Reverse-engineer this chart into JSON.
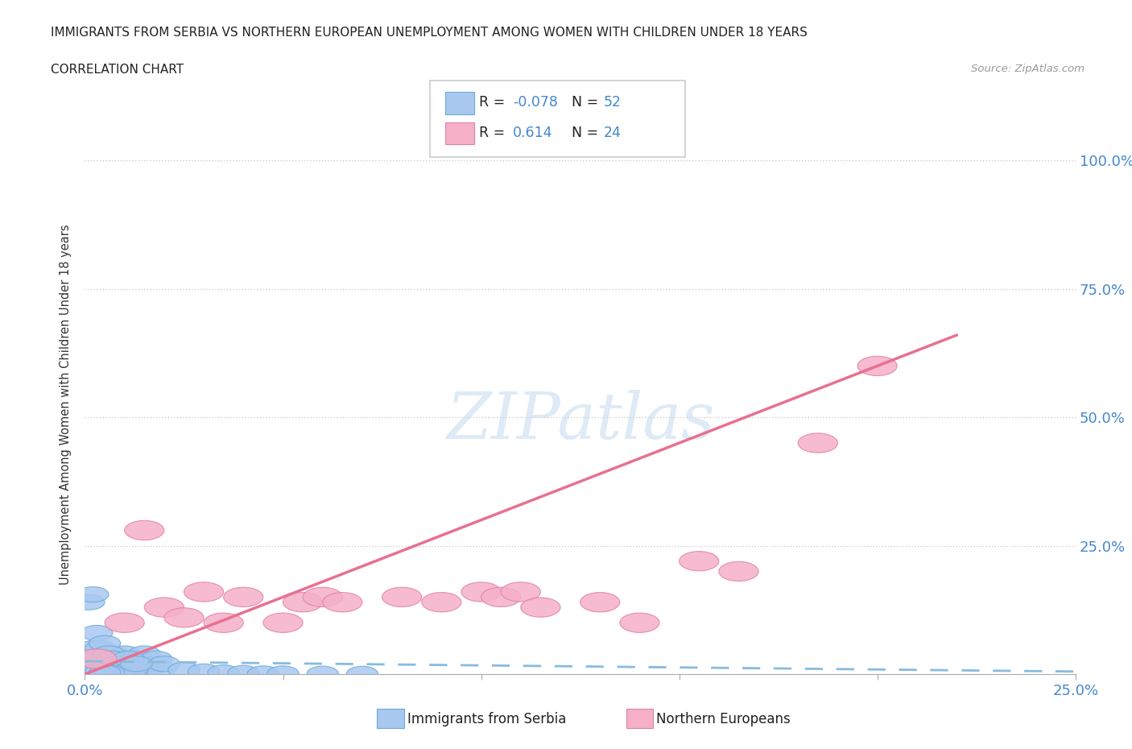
{
  "title": "IMMIGRANTS FROM SERBIA VS NORTHERN EUROPEAN UNEMPLOYMENT AMONG WOMEN WITH CHILDREN UNDER 18 YEARS",
  "subtitle": "CORRELATION CHART",
  "source": "Source: ZipAtlas.com",
  "ylabel": "Unemployment Among Women with Children Under 18 years",
  "xlim": [
    0.0,
    0.25
  ],
  "ylim": [
    0.0,
    1.05
  ],
  "r_serbia": -0.078,
  "n_serbia": 52,
  "r_northern": 0.614,
  "n_northern": 24,
  "color_serbia_fill": "#a8c8f0",
  "color_serbia_edge": "#6aaad8",
  "color_northern_fill": "#f5b0c8",
  "color_northern_edge": "#e080a8",
  "color_serbia_line": "#88bbdd",
  "color_northern_line": "#e87090",
  "color_right_labels": "#4488cc",
  "color_bottom_labels": "#4488cc",
  "watermark": "ZIPatlas",
  "serbia_x": [
    0.0005,
    0.001,
    0.0015,
    0.002,
    0.0025,
    0.003,
    0.004,
    0.005,
    0.006,
    0.007,
    0.008,
    0.009,
    0.01,
    0.011,
    0.012,
    0.013,
    0.014,
    0.015,
    0.016,
    0.017,
    0.018,
    0.019,
    0.02,
    0.001,
    0.002,
    0.003,
    0.004,
    0.005,
    0.006,
    0.007,
    0.008,
    0.009,
    0.01,
    0.011,
    0.012,
    0.013,
    0.003,
    0.004,
    0.005,
    0.006,
    0.002,
    0.003,
    0.004,
    0.005,
    0.025,
    0.03,
    0.035,
    0.04,
    0.045,
    0.05,
    0.06,
    0.07
  ],
  "serbia_y": [
    0.02,
    0.03,
    0.04,
    0.05,
    0.02,
    0.03,
    0.02,
    0.01,
    0.03,
    0.04,
    0.02,
    0.03,
    0.04,
    0.02,
    0.01,
    0.03,
    0.02,
    0.04,
    0.01,
    0.02,
    0.03,
    0.01,
    0.02,
    0.14,
    0.155,
    0.08,
    0.05,
    0.06,
    0.04,
    0.03,
    0.02,
    0.01,
    0.02,
    0.03,
    0.01,
    0.02,
    0.01,
    0.005,
    0.005,
    0.003,
    0.01,
    0.005,
    0.005,
    0.003,
    0.008,
    0.005,
    0.003,
    0.002,
    0.001,
    0.001,
    0.0005,
    0.0003
  ],
  "northern_x": [
    0.003,
    0.01,
    0.015,
    0.02,
    0.025,
    0.03,
    0.035,
    0.04,
    0.05,
    0.055,
    0.06,
    0.065,
    0.08,
    0.09,
    0.1,
    0.105,
    0.11,
    0.115,
    0.13,
    0.14,
    0.155,
    0.165,
    0.185,
    0.2
  ],
  "northern_y": [
    0.03,
    0.1,
    0.28,
    0.13,
    0.11,
    0.16,
    0.1,
    0.15,
    0.1,
    0.14,
    0.15,
    0.14,
    0.15,
    0.14,
    0.16,
    0.15,
    0.16,
    0.13,
    0.14,
    0.1,
    0.22,
    0.2,
    0.45,
    0.6
  ],
  "serbia_line_x": [
    0.0,
    0.25
  ],
  "serbia_line_y": [
    0.025,
    0.005
  ],
  "northern_line_x": [
    0.0,
    0.22
  ],
  "northern_line_y": [
    0.0,
    0.66
  ]
}
